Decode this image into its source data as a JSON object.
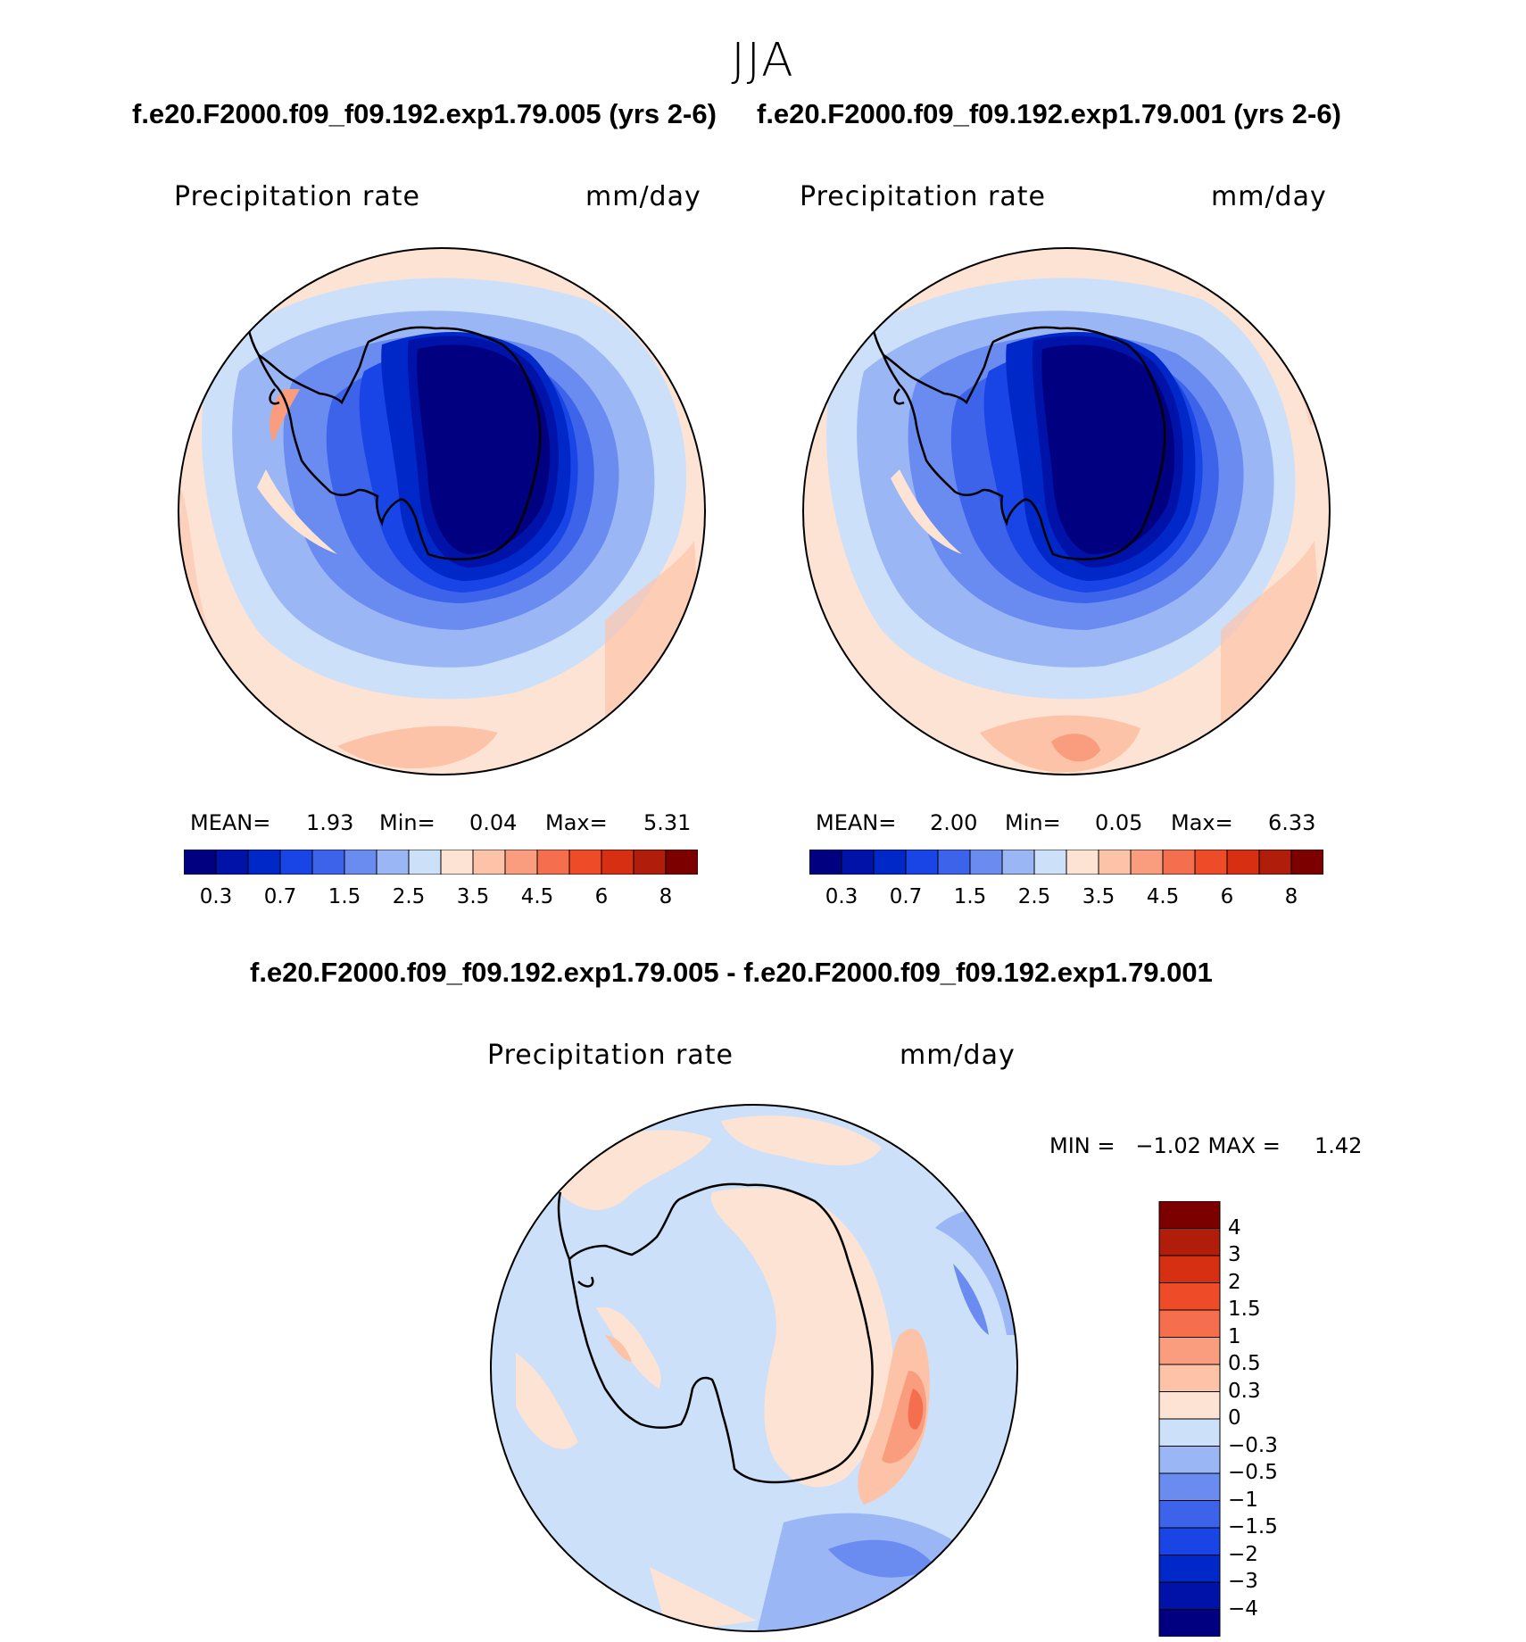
{
  "season": "JJA",
  "panels": [
    {
      "case_title": "f.e20.F2000.f09_f09.192.exp1.79.005 (yrs 2-6)",
      "variable": "Precipitation rate",
      "units": "mm/day",
      "stats": {
        "mean_label": "MEAN=",
        "mean": "1.93",
        "min_label": "Min=",
        "min": "0.04",
        "max_label": "Max=",
        "max": "5.31"
      },
      "colorbar_ticks": [
        "0.3",
        "0.7",
        "1.5",
        "2.5",
        "3.5",
        "4.5",
        "6",
        "8"
      ]
    },
    {
      "case_title": "f.e20.F2000.f09_f09.192.exp1.79.001 (yrs 2-6)",
      "variable": "Precipitation rate",
      "units": "mm/day",
      "stats": {
        "mean_label": "MEAN=",
        "mean": "2.00",
        "min_label": "Min=",
        "min": "0.05",
        "max_label": "Max=",
        "max": "6.33"
      },
      "colorbar_ticks": [
        "0.3",
        "0.7",
        "1.5",
        "2.5",
        "3.5",
        "4.5",
        "6",
        "8"
      ]
    }
  ],
  "difference": {
    "title": "f.e20.F2000.f09_f09.192.exp1.79.005 - f.e20.F2000.f09_f09.192.exp1.79.001",
    "variable": "Precipitation rate",
    "units": "mm/day",
    "minmax_text": "MIN =   −1.02 MAX =     1.42",
    "colorbar_ticks": [
      "4",
      "3",
      "2",
      "1.5",
      "1",
      "0.5",
      "0.3",
      "0",
      "−0.3",
      "−0.5",
      "−1",
      "−1.5",
      "−2",
      "−3",
      "−4"
    ]
  },
  "colors": {
    "abs_scale": [
      "#000080",
      "#0012a8",
      "#0028c8",
      "#1a45e6",
      "#3d63eb",
      "#6a8cf0",
      "#9ab6f5",
      "#cde0fa",
      "#fde3d4",
      "#fcc3a8",
      "#f99d7e",
      "#f56f4e",
      "#ee4b28",
      "#d72f12",
      "#b01e0b",
      "#7c0000"
    ],
    "diff_scale": [
      "#7c0000",
      "#b01e0b",
      "#d72f12",
      "#ee4b28",
      "#f56f4e",
      "#f99d7e",
      "#fcc3a8",
      "#fde3d4",
      "#cde0fa",
      "#9ab6f5",
      "#6a8cf0",
      "#3d63eb",
      "#1a45e6",
      "#0028c8",
      "#0012a8",
      "#000080"
    ]
  }
}
